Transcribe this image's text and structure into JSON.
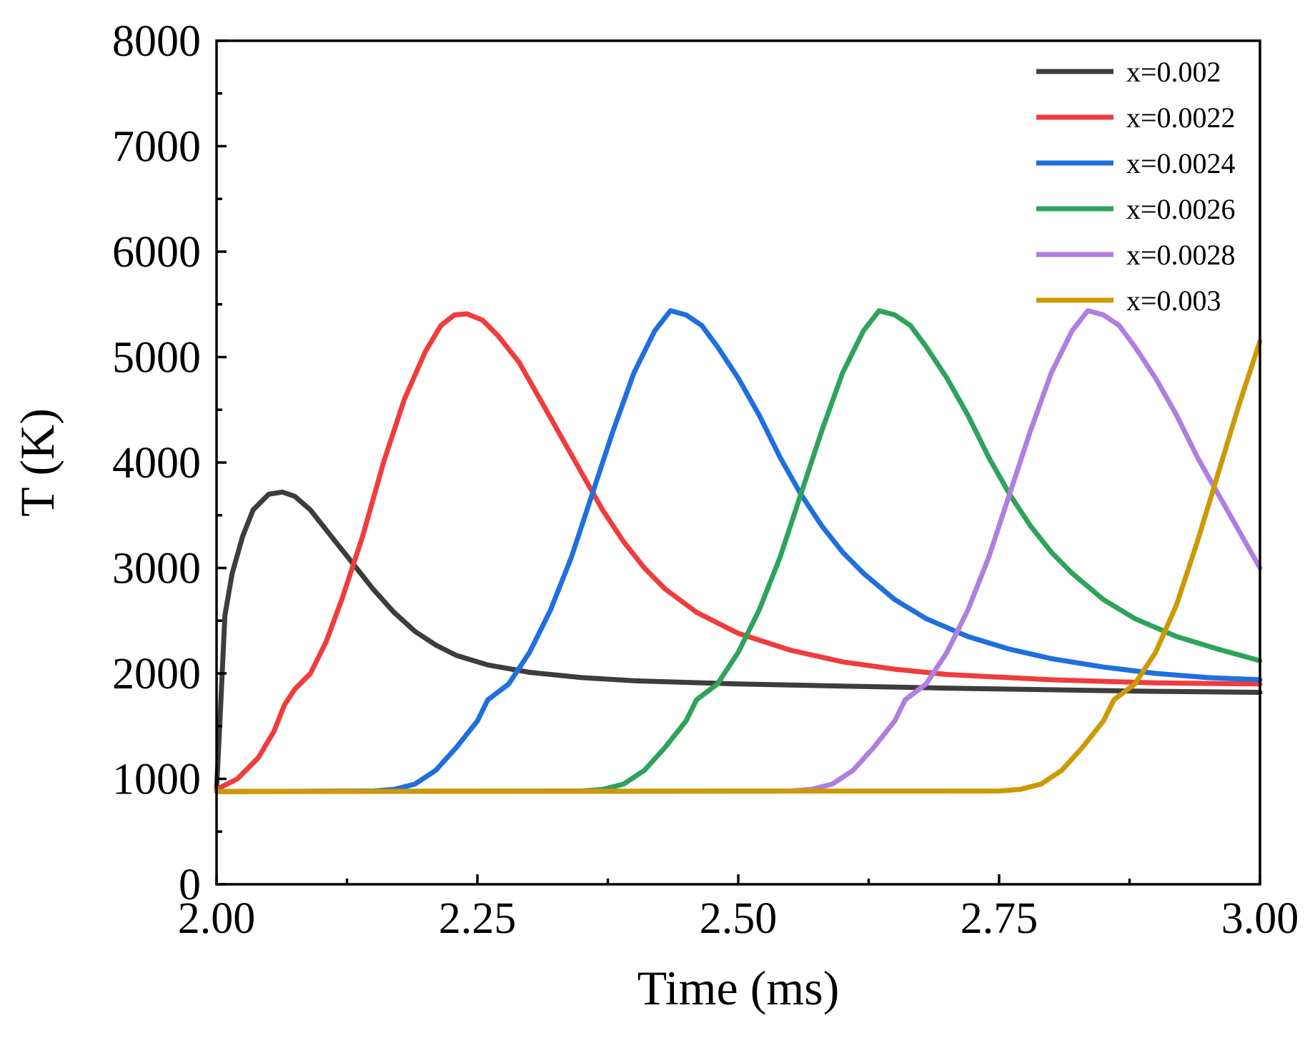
{
  "chart_data": {
    "type": "line",
    "title": "",
    "xlabel": "Time (ms)",
    "ylabel": "T (K)",
    "xlim": [
      2.0,
      3.0
    ],
    "ylim": [
      0,
      8000
    ],
    "xticks": [
      2.0,
      2.25,
      2.5,
      2.75,
      3.0
    ],
    "xtick_labels": [
      "2.00",
      "2.25",
      "2.50",
      "2.75",
      "3.00"
    ],
    "xminor": [
      2.125,
      2.375,
      2.625,
      2.875
    ],
    "yticks": [
      0,
      1000,
      2000,
      3000,
      4000,
      5000,
      6000,
      7000,
      8000
    ],
    "ytick_labels": [
      "0",
      "1000",
      "2000",
      "3000",
      "4000",
      "5000",
      "6000",
      "7000",
      "8000"
    ],
    "yminor": [
      500,
      1500,
      2500,
      3500,
      4500,
      5500,
      6500,
      7500
    ],
    "legend_position": "top-right",
    "grid": false,
    "series": [
      {
        "name": "x=0.002",
        "color": "#3d3d3d",
        "points": [
          [
            2.0,
            900
          ],
          [
            2.003,
            1500
          ],
          [
            2.008,
            2550
          ],
          [
            2.015,
            2950
          ],
          [
            2.025,
            3300
          ],
          [
            2.035,
            3550
          ],
          [
            2.05,
            3700
          ],
          [
            2.063,
            3720
          ],
          [
            2.075,
            3680
          ],
          [
            2.09,
            3550
          ],
          [
            2.11,
            3300
          ],
          [
            2.13,
            3050
          ],
          [
            2.15,
            2800
          ],
          [
            2.17,
            2580
          ],
          [
            2.19,
            2400
          ],
          [
            2.21,
            2270
          ],
          [
            2.23,
            2170
          ],
          [
            2.26,
            2080
          ],
          [
            2.3,
            2010
          ],
          [
            2.35,
            1960
          ],
          [
            2.4,
            1930
          ],
          [
            2.5,
            1900
          ],
          [
            2.6,
            1880
          ],
          [
            2.7,
            1860
          ],
          [
            2.8,
            1845
          ],
          [
            2.9,
            1830
          ],
          [
            3.0,
            1820
          ]
        ]
      },
      {
        "name": "x=0.0022",
        "color": "#f03c3c",
        "points": [
          [
            2.0,
            900
          ],
          [
            2.02,
            1000
          ],
          [
            2.04,
            1200
          ],
          [
            2.055,
            1450
          ],
          [
            2.065,
            1700
          ],
          [
            2.075,
            1850
          ],
          [
            2.09,
            2000
          ],
          [
            2.105,
            2300
          ],
          [
            2.12,
            2700
          ],
          [
            2.14,
            3300
          ],
          [
            2.16,
            4000
          ],
          [
            2.18,
            4600
          ],
          [
            2.2,
            5050
          ],
          [
            2.215,
            5300
          ],
          [
            2.228,
            5400
          ],
          [
            2.24,
            5410
          ],
          [
            2.255,
            5350
          ],
          [
            2.27,
            5200
          ],
          [
            2.29,
            4950
          ],
          [
            2.31,
            4600
          ],
          [
            2.33,
            4250
          ],
          [
            2.35,
            3900
          ],
          [
            2.37,
            3550
          ],
          [
            2.39,
            3250
          ],
          [
            2.41,
            3000
          ],
          [
            2.43,
            2800
          ],
          [
            2.46,
            2580
          ],
          [
            2.5,
            2380
          ],
          [
            2.55,
            2220
          ],
          [
            2.6,
            2110
          ],
          [
            2.65,
            2040
          ],
          [
            2.7,
            1990
          ],
          [
            2.8,
            1940
          ],
          [
            2.9,
            1910
          ],
          [
            3.0,
            1900
          ]
        ]
      },
      {
        "name": "x=0.0024",
        "color": "#1f6fdf",
        "points": [
          [
            2.0,
            880
          ],
          [
            2.15,
            885
          ],
          [
            2.17,
            900
          ],
          [
            2.19,
            950
          ],
          [
            2.21,
            1080
          ],
          [
            2.23,
            1300
          ],
          [
            2.25,
            1550
          ],
          [
            2.26,
            1750
          ],
          [
            2.28,
            1900
          ],
          [
            2.3,
            2200
          ],
          [
            2.32,
            2600
          ],
          [
            2.34,
            3100
          ],
          [
            2.36,
            3700
          ],
          [
            2.38,
            4300
          ],
          [
            2.4,
            4850
          ],
          [
            2.42,
            5250
          ],
          [
            2.435,
            5440
          ],
          [
            2.45,
            5400
          ],
          [
            2.465,
            5300
          ],
          [
            2.48,
            5100
          ],
          [
            2.5,
            4800
          ],
          [
            2.52,
            4450
          ],
          [
            2.54,
            4050
          ],
          [
            2.56,
            3700
          ],
          [
            2.58,
            3400
          ],
          [
            2.6,
            3150
          ],
          [
            2.62,
            2950
          ],
          [
            2.65,
            2700
          ],
          [
            2.68,
            2520
          ],
          [
            2.72,
            2350
          ],
          [
            2.76,
            2230
          ],
          [
            2.8,
            2140
          ],
          [
            2.85,
            2060
          ],
          [
            2.9,
            2000
          ],
          [
            2.95,
            1960
          ],
          [
            3.0,
            1940
          ]
        ]
      },
      {
        "name": "x=0.0026",
        "color": "#2ea35a",
        "points": [
          [
            2.0,
            880
          ],
          [
            2.35,
            885
          ],
          [
            2.37,
            900
          ],
          [
            2.39,
            950
          ],
          [
            2.41,
            1080
          ],
          [
            2.43,
            1300
          ],
          [
            2.45,
            1550
          ],
          [
            2.46,
            1750
          ],
          [
            2.48,
            1900
          ],
          [
            2.5,
            2200
          ],
          [
            2.52,
            2600
          ],
          [
            2.54,
            3100
          ],
          [
            2.56,
            3700
          ],
          [
            2.58,
            4300
          ],
          [
            2.6,
            4850
          ],
          [
            2.62,
            5250
          ],
          [
            2.635,
            5440
          ],
          [
            2.65,
            5400
          ],
          [
            2.665,
            5300
          ],
          [
            2.68,
            5100
          ],
          [
            2.7,
            4800
          ],
          [
            2.72,
            4450
          ],
          [
            2.74,
            4050
          ],
          [
            2.76,
            3700
          ],
          [
            2.78,
            3400
          ],
          [
            2.8,
            3150
          ],
          [
            2.82,
            2950
          ],
          [
            2.85,
            2700
          ],
          [
            2.88,
            2520
          ],
          [
            2.92,
            2350
          ],
          [
            2.96,
            2230
          ],
          [
            3.0,
            2120
          ]
        ]
      },
      {
        "name": "x=0.0028",
        "color": "#b07ee0",
        "points": [
          [
            2.0,
            880
          ],
          [
            2.55,
            885
          ],
          [
            2.57,
            900
          ],
          [
            2.59,
            950
          ],
          [
            2.61,
            1080
          ],
          [
            2.63,
            1300
          ],
          [
            2.65,
            1550
          ],
          [
            2.66,
            1750
          ],
          [
            2.68,
            1900
          ],
          [
            2.7,
            2200
          ],
          [
            2.72,
            2600
          ],
          [
            2.74,
            3100
          ],
          [
            2.76,
            3700
          ],
          [
            2.78,
            4300
          ],
          [
            2.8,
            4850
          ],
          [
            2.82,
            5250
          ],
          [
            2.835,
            5440
          ],
          [
            2.85,
            5400
          ],
          [
            2.865,
            5300
          ],
          [
            2.88,
            5100
          ],
          [
            2.9,
            4800
          ],
          [
            2.92,
            4450
          ],
          [
            2.94,
            4050
          ],
          [
            2.96,
            3700
          ],
          [
            2.98,
            3350
          ],
          [
            3.0,
            3000
          ]
        ]
      },
      {
        "name": "x=0.003",
        "color": "#cc9a06",
        "points": [
          [
            2.0,
            880
          ],
          [
            2.75,
            885
          ],
          [
            2.77,
            900
          ],
          [
            2.79,
            950
          ],
          [
            2.81,
            1080
          ],
          [
            2.83,
            1300
          ],
          [
            2.85,
            1550
          ],
          [
            2.86,
            1750
          ],
          [
            2.88,
            1900
          ],
          [
            2.9,
            2200
          ],
          [
            2.92,
            2650
          ],
          [
            2.94,
            3250
          ],
          [
            2.96,
            3900
          ],
          [
            2.98,
            4550
          ],
          [
            3.0,
            5150
          ]
        ]
      }
    ]
  }
}
